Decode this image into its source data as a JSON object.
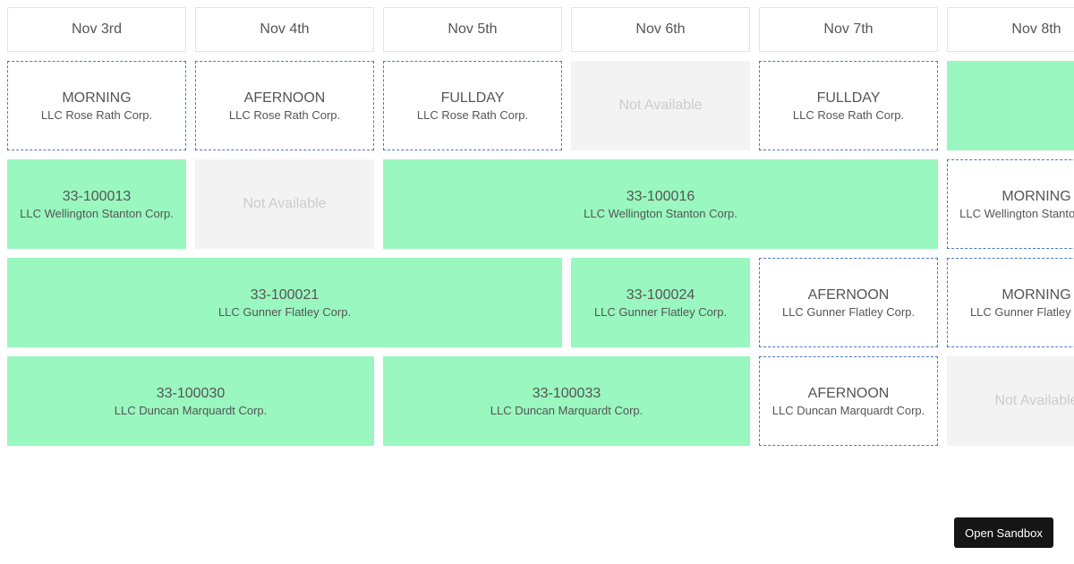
{
  "header": {
    "days": [
      "Nov 3rd",
      "Nov 4th",
      "Nov 5th",
      "Nov 6th",
      "Nov 7th",
      "Nov 8th"
    ]
  },
  "rows": [
    {
      "slots": [
        {
          "status": "MORNING",
          "company": "LLC Rose Rath Corp."
        },
        {
          "status": "AFERNOON",
          "company": "LLC Rose Rath Corp."
        },
        {
          "status": "FULLDAY",
          "company": "LLC Rose Rath Corp."
        },
        {
          "status": "Not Available"
        },
        {
          "status": "FULLDAY",
          "company": "LLC Rose Rath Corp."
        },
        {
          "status": ""
        }
      ]
    },
    {
      "slots": [
        {
          "status": "33-100013",
          "company": "LLC Wellington Stanton Corp."
        },
        {
          "status": "Not Available"
        },
        {
          "status": "33-100016",
          "company": "LLC Wellington Stanton Corp."
        },
        {
          "status": "MORNING",
          "company": "LLC Wellington Stanton Corp."
        }
      ]
    },
    {
      "slots": [
        {
          "status": "33-100021",
          "company": "LLC Gunner Flatley Corp."
        },
        {
          "status": "33-100024",
          "company": "LLC Gunner Flatley Corp."
        },
        {
          "status": "AFERNOON",
          "company": "LLC Gunner Flatley Corp."
        },
        {
          "status": "MORNING",
          "company": "LLC Gunner Flatley Corp."
        }
      ]
    },
    {
      "slots": [
        {
          "status": "33-100030",
          "company": "LLC Duncan Marquardt Corp."
        },
        {
          "status": "33-100033",
          "company": "LLC Duncan Marquardt Corp."
        },
        {
          "status": "AFERNOON",
          "company": "LLC Duncan Marquardt Corp."
        },
        {
          "status": "Not Available"
        }
      ]
    }
  ],
  "sandbox_button": {
    "label": "Open Sandbox"
  },
  "colors": {
    "booked": "#99f7bf",
    "unavailable": "#f3f3f3",
    "dashed_border": "#4a78c4"
  }
}
